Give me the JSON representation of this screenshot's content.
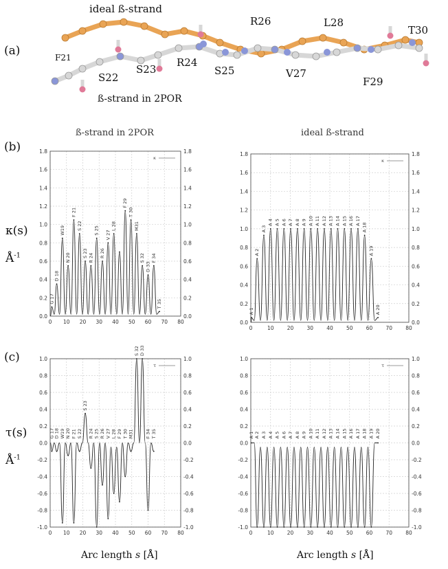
{
  "panel_a": {
    "letter": "(a)",
    "ideal_label": "ideal ß-strand",
    "por_label": "ß-strand in 2POR",
    "residues": [
      "F21",
      "S22",
      "S23",
      "R24",
      "S25",
      "R26",
      "V27",
      "L28",
      "F29",
      "T30"
    ]
  },
  "panel_b": {
    "letter": "(b)",
    "y_label": "κ(s)",
    "unit_label": "Å",
    "unit_exp": "-1"
  },
  "panel_c": {
    "letter": "(c)",
    "y_label": "τ(s)",
    "unit_label": "Å",
    "unit_exp": "-1"
  },
  "column_titles": {
    "left": "ß-strand in 2POR",
    "right": "ideal ß-strand"
  },
  "x_axis_label": {
    "prefix": "Arc length ",
    "var": "s",
    "suffix": " [Å]"
  },
  "colors": {
    "orange": "#e9a455",
    "gray": "#d7d7d7",
    "blue": "#8a96d8",
    "pink": "#e07a98",
    "line": "#222222",
    "grid": "#cfcfcf"
  },
  "chart_data": [
    {
      "id": "kappa-2POR",
      "type": "line",
      "title": "ß-strand in 2POR",
      "xlabel": "Arc length s [Å]",
      "ylabel": "κ(s) Å-1",
      "xlim": [
        0,
        80
      ],
      "ylim": [
        0,
        1.8
      ],
      "xticks": [
        0,
        10,
        20,
        30,
        40,
        50,
        60,
        70,
        80
      ],
      "yticks": [
        0,
        0.2,
        0.4,
        0.6,
        0.8,
        1.0,
        1.2,
        1.4,
        1.6,
        1.8
      ],
      "legend": "κ",
      "peaks": [
        {
          "s": 1,
          "v": 0.1,
          "label": "G 17"
        },
        {
          "s": 4,
          "v": 0.35,
          "label": "D 18"
        },
        {
          "s": 7.5,
          "v": 0.85,
          "label": "W19"
        },
        {
          "s": 11,
          "v": 0.55,
          "label": "N 20"
        },
        {
          "s": 14.5,
          "v": 1.05,
          "label": "F 21"
        },
        {
          "s": 18,
          "v": 0.9,
          "label": "S 22"
        },
        {
          "s": 21.5,
          "v": 0.6,
          "label": "S 23"
        },
        {
          "s": 25,
          "v": 0.55,
          "label": "R 24"
        },
        {
          "s": 28.5,
          "v": 0.85,
          "label": "S 25"
        },
        {
          "s": 32,
          "v": 0.6,
          "label": "R 26"
        },
        {
          "s": 35.5,
          "v": 0.8,
          "label": "V 27"
        },
        {
          "s": 39,
          "v": 0.9,
          "label": "L 28"
        },
        {
          "s": 42.5,
          "v": 0.7,
          "label": ""
        },
        {
          "s": 46,
          "v": 1.15,
          "label": "F 29"
        },
        {
          "s": 49.5,
          "v": 1.05,
          "label": "T 30"
        },
        {
          "s": 53,
          "v": 0.9,
          "label": "M31"
        },
        {
          "s": 56.5,
          "v": 0.55,
          "label": "S 32"
        },
        {
          "s": 60,
          "v": 0.45,
          "label": "D 33"
        },
        {
          "s": 63.5,
          "v": 0.55,
          "label": "F 34"
        },
        {
          "s": 67,
          "v": 0.05,
          "label": "T 35"
        }
      ]
    },
    {
      "id": "kappa-ideal",
      "type": "line",
      "title": "ideal ß-strand",
      "xlabel": "Arc length s [Å]",
      "ylabel": "κ(s) Å-1",
      "xlim": [
        0,
        80
      ],
      "ylim": [
        0,
        1.8
      ],
      "xticks": [
        0,
        10,
        20,
        30,
        40,
        50,
        60,
        70,
        80
      ],
      "yticks": [
        0,
        0.2,
        0.4,
        0.6,
        0.8,
        1.0,
        1.2,
        1.4,
        1.6,
        1.8
      ],
      "legend": "κ",
      "peaks": [
        {
          "s": 0.3,
          "v": 0.05,
          "label": "A 1"
        },
        {
          "s": 3.2,
          "v": 0.68,
          "label": "A 2"
        },
        {
          "s": 6.6,
          "v": 0.93,
          "label": "A 3"
        },
        {
          "s": 10,
          "v": 1.0,
          "label": "A 4"
        },
        {
          "s": 13.4,
          "v": 1.0,
          "label": "A 5"
        },
        {
          "s": 16.8,
          "v": 1.0,
          "label": "A 6"
        },
        {
          "s": 20.2,
          "v": 1.0,
          "label": "A 7"
        },
        {
          "s": 23.6,
          "v": 1.0,
          "label": "A 8"
        },
        {
          "s": 27,
          "v": 1.0,
          "label": "A 9"
        },
        {
          "s": 30.4,
          "v": 1.0,
          "label": "A 10"
        },
        {
          "s": 33.8,
          "v": 1.0,
          "label": "A 11"
        },
        {
          "s": 37.2,
          "v": 1.0,
          "label": "A 12"
        },
        {
          "s": 40.6,
          "v": 1.0,
          "label": "A 13"
        },
        {
          "s": 44,
          "v": 1.0,
          "label": "A 14"
        },
        {
          "s": 47.4,
          "v": 1.0,
          "label": "A 15"
        },
        {
          "s": 50.8,
          "v": 1.0,
          "label": "A 16"
        },
        {
          "s": 54.2,
          "v": 1.0,
          "label": "A 17"
        },
        {
          "s": 57.6,
          "v": 0.93,
          "label": "A 18"
        },
        {
          "s": 61,
          "v": 0.68,
          "label": "A 19"
        },
        {
          "s": 64.4,
          "v": 0.05,
          "label": "A 20"
        }
      ]
    },
    {
      "id": "tau-2POR",
      "type": "line",
      "title": "",
      "xlabel": "Arc length s [Å]",
      "ylabel": "τ(s) Å-1",
      "xlim": [
        0,
        80
      ],
      "ylim": [
        -1,
        1
      ],
      "xticks": [
        0,
        10,
        20,
        30,
        40,
        50,
        60,
        70,
        80
      ],
      "yticks": [
        -1,
        -0.8,
        -0.6,
        -0.4,
        -0.2,
        0,
        0.2,
        0.4,
        0.6,
        0.8,
        1.0
      ],
      "legend": "τ",
      "peaks": [
        {
          "s": 1,
          "v": -0.1,
          "label": "G 17"
        },
        {
          "s": 4,
          "v": -0.1,
          "label": "D 18"
        },
        {
          "s": 7.5,
          "v": -0.95,
          "label": "W19"
        },
        {
          "s": 11,
          "v": -0.15,
          "label": "N 20"
        },
        {
          "s": 14.5,
          "v": -0.95,
          "label": "F 21"
        },
        {
          "s": 18,
          "v": -0.1,
          "label": "S 22"
        },
        {
          "s": 21.5,
          "v": 0.35,
          "label": "S 23"
        },
        {
          "s": 25,
          "v": -0.3,
          "label": "R 24"
        },
        {
          "s": 28.5,
          "v": -1.0,
          "label": "S 25"
        },
        {
          "s": 32,
          "v": -0.5,
          "label": "R 26"
        },
        {
          "s": 35.5,
          "v": -0.9,
          "label": "V 27"
        },
        {
          "s": 39,
          "v": -0.6,
          "label": "L 28"
        },
        {
          "s": 42.5,
          "v": -0.7,
          "label": "F 29"
        },
        {
          "s": 46,
          "v": -0.4,
          "label": "T 30"
        },
        {
          "s": 49.5,
          "v": -0.1,
          "label": "M31"
        },
        {
          "s": 53,
          "v": 1.0,
          "label": "S 32"
        },
        {
          "s": 56.5,
          "v": 1.0,
          "label": "D 33"
        },
        {
          "s": 60,
          "v": -0.8,
          "label": "F 34"
        },
        {
          "s": 63.5,
          "v": -0.1,
          "label": "T 35"
        }
      ]
    },
    {
      "id": "tau-ideal",
      "type": "line",
      "title": "",
      "xlabel": "Arc length s [Å]",
      "ylabel": "τ(s) Å-1",
      "xlim": [
        0,
        80
      ],
      "ylim": [
        -1,
        1
      ],
      "xticks": [
        0,
        10,
        20,
        30,
        40,
        50,
        60,
        70,
        80
      ],
      "yticks": [
        -1,
        -0.8,
        -0.6,
        -0.4,
        -0.2,
        0,
        0.2,
        0.4,
        0.6,
        0.8,
        1.0
      ],
      "legend": "τ",
      "peaks": [
        {
          "s": 0.3,
          "v": 0.0,
          "label": "A 1"
        },
        {
          "s": 3.2,
          "v": -1.0,
          "label": "A 2"
        },
        {
          "s": 6.6,
          "v": -1.0,
          "label": "A 3"
        },
        {
          "s": 10,
          "v": -1.0,
          "label": "A 4"
        },
        {
          "s": 13.4,
          "v": -1.0,
          "label": "A 5"
        },
        {
          "s": 16.8,
          "v": -1.0,
          "label": "A 6"
        },
        {
          "s": 20.2,
          "v": -1.0,
          "label": "A 7"
        },
        {
          "s": 23.6,
          "v": -1.0,
          "label": "A 8"
        },
        {
          "s": 27,
          "v": -1.0,
          "label": "A 9"
        },
        {
          "s": 30.4,
          "v": -1.0,
          "label": "A 10"
        },
        {
          "s": 33.8,
          "v": -1.0,
          "label": "A 11"
        },
        {
          "s": 37.2,
          "v": -1.0,
          "label": "A 12"
        },
        {
          "s": 40.6,
          "v": -1.0,
          "label": "A 13"
        },
        {
          "s": 44,
          "v": -1.0,
          "label": "A 14"
        },
        {
          "s": 47.4,
          "v": -1.0,
          "label": "A 15"
        },
        {
          "s": 50.8,
          "v": -1.0,
          "label": "A 16"
        },
        {
          "s": 54.2,
          "v": -1.0,
          "label": "A 17"
        },
        {
          "s": 57.6,
          "v": -1.0,
          "label": "A 18"
        },
        {
          "s": 61,
          "v": -1.0,
          "label": "A 19"
        },
        {
          "s": 64.4,
          "v": 0.0,
          "label": "A 20"
        }
      ]
    }
  ]
}
